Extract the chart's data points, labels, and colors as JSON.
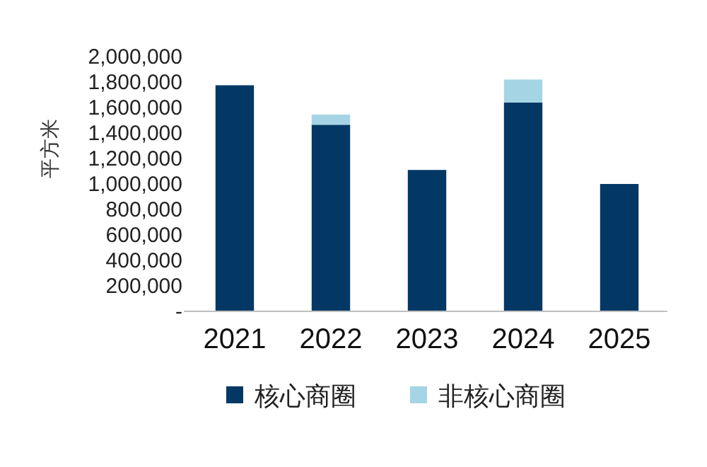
{
  "chart_data": {
    "type": "bar",
    "stacked": true,
    "ylabel": "平方米",
    "categories": [
      "2021",
      "2022",
      "2023",
      "2024",
      "2025"
    ],
    "series": [
      {
        "name": "核心商圈",
        "color": "#033865",
        "values": [
          1775000,
          1465000,
          1110000,
          1640000,
          1000000
        ]
      },
      {
        "name": "非核心商圈",
        "color": "#a5d5e4",
        "values": [
          null,
          80000,
          null,
          180000,
          null
        ]
      }
    ],
    "ylim": [
      0,
      2000000
    ],
    "yticks": [
      {
        "value": 0,
        "label": "-"
      },
      {
        "value": 200000,
        "label": "200,000"
      },
      {
        "value": 400000,
        "label": "400,000"
      },
      {
        "value": 600000,
        "label": "600,000"
      },
      {
        "value": 800000,
        "label": "800,000"
      },
      {
        "value": 1000000,
        "label": "1,000,000"
      },
      {
        "value": 1200000,
        "label": "1,200,000"
      },
      {
        "value": 1400000,
        "label": "1,400,000"
      },
      {
        "value": 1600000,
        "label": "1,600,000"
      },
      {
        "value": 1800000,
        "label": "1,800,000"
      },
      {
        "value": 2000000,
        "label": "2,000,000"
      }
    ],
    "grid": false,
    "legend": "bottom"
  }
}
